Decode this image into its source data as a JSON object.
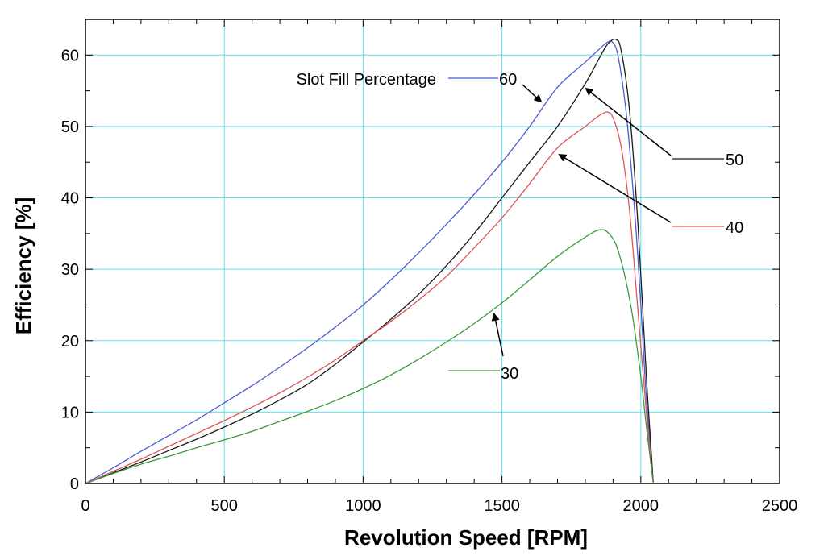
{
  "chart_data": {
    "type": "line",
    "title": "",
    "xlabel": "Revolution Speed  [RPM]",
    "ylabel": "Efficiency [%]",
    "xlim": [
      0,
      2500
    ],
    "ylim": [
      0,
      65
    ],
    "xticks": [
      0,
      500,
      1000,
      1500,
      2000,
      2500
    ],
    "yticks": [
      0,
      10,
      20,
      30,
      40,
      50,
      60
    ],
    "xtick_labels": [
      "0",
      "500",
      "1000",
      "1500",
      "2000",
      "2500"
    ],
    "ytick_labels": [
      "0",
      "10",
      "20",
      "30",
      "40",
      "50",
      "60"
    ],
    "grid": true,
    "grid_color": "#5ee0ea",
    "legend_title": "Slot Fill Percentage",
    "series": [
      {
        "name": "60",
        "color": "#4a5ad8",
        "x": [
          0,
          100,
          200,
          300,
          400,
          500,
          600,
          700,
          800,
          900,
          1000,
          1100,
          1200,
          1300,
          1400,
          1500,
          1600,
          1700,
          1800,
          1850,
          1880,
          1900,
          1920,
          1950,
          1980,
          2000,
          2020,
          2045
        ],
        "y": [
          0,
          2.2,
          4.5,
          6.7,
          8.9,
          11.3,
          13.7,
          16.3,
          19,
          21.9,
          25,
          28.5,
          32.3,
          36.3,
          40.5,
          45,
          50,
          55.5,
          59,
          60.8,
          61.8,
          61.7,
          59.5,
          51,
          37,
          25,
          12,
          0
        ]
      },
      {
        "name": "50",
        "color": "#1a1a1a",
        "x": [
          0,
          100,
          200,
          300,
          400,
          500,
          600,
          700,
          800,
          900,
          1000,
          1100,
          1200,
          1300,
          1400,
          1500,
          1600,
          1700,
          1800,
          1850,
          1880,
          1910,
          1930,
          1960,
          1990,
          2020,
          2045
        ],
        "y": [
          0,
          1.5,
          3,
          4.6,
          6.2,
          7.9,
          9.7,
          11.7,
          13.9,
          16.7,
          19.8,
          23,
          26.5,
          30.5,
          35,
          40,
          45,
          50,
          56,
          59.5,
          61.5,
          62.2,
          60.5,
          52,
          36,
          15,
          0
        ]
      },
      {
        "name": "40",
        "color": "#e05555",
        "x": [
          0,
          100,
          200,
          300,
          400,
          500,
          600,
          700,
          800,
          900,
          1000,
          1100,
          1200,
          1300,
          1400,
          1500,
          1600,
          1700,
          1800,
          1850,
          1880,
          1900,
          1930,
          1960,
          1990,
          2020,
          2045
        ],
        "y": [
          0,
          1.7,
          3.4,
          5.2,
          7,
          8.8,
          10.7,
          12.7,
          14.9,
          17.3,
          20,
          22.7,
          25.7,
          29,
          33,
          37.2,
          42,
          47,
          50,
          51.5,
          52,
          51.2,
          47,
          38,
          24,
          10,
          0
        ]
      },
      {
        "name": "30",
        "color": "#3a9a3a",
        "x": [
          0,
          100,
          200,
          300,
          400,
          500,
          600,
          700,
          800,
          900,
          1000,
          1100,
          1200,
          1300,
          1400,
          1500,
          1600,
          1700,
          1800,
          1850,
          1880,
          1910,
          1940,
          1970,
          2000,
          2020,
          2045
        ],
        "y": [
          0,
          1.4,
          2.7,
          3.8,
          5,
          6.1,
          7.3,
          8.7,
          10.1,
          11.6,
          13.3,
          15.2,
          17.4,
          19.8,
          22.4,
          25.3,
          28.5,
          31.8,
          34.5,
          35.5,
          35.2,
          33.5,
          29.5,
          23.5,
          15,
          8,
          0
        ]
      }
    ],
    "annotations": [
      {
        "label": "Slot Fill Percentage"
      },
      {
        "label": "60"
      },
      {
        "label": "50"
      },
      {
        "label": "40"
      },
      {
        "label": "30"
      }
    ]
  }
}
